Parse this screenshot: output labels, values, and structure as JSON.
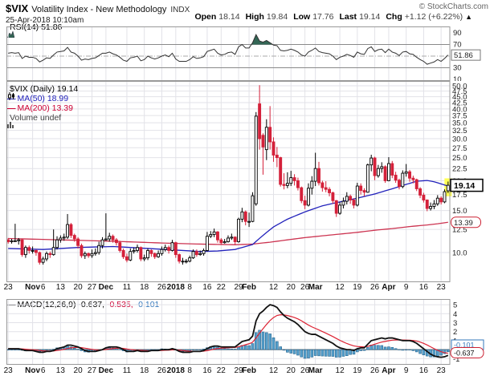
{
  "header": {
    "symbol": "$VIX",
    "title": "Volatility Index - New Methodology",
    "exchange": "INDX",
    "credit": "© StockCharts.com",
    "timestamp": "25-Apr-2018 10:10am",
    "quote": {
      "open_label": "Open",
      "open": "18.14",
      "high_label": "High",
      "high": "19.84",
      "low_label": "Low",
      "low": "17.76",
      "last_label": "Last",
      "last": "19.14",
      "chg_label": "Chg",
      "chg": "+1.12 (+6.22%)",
      "arrow": "▲"
    }
  },
  "rsi": {
    "label": "RSI(14) 51.86",
    "value_box": "51.86"
  },
  "main": {
    "legend": {
      "series": "$VIX (Daily) 19.14",
      "ma50": "MA(50) 18.99",
      "ma200": "MA(200) 13.39",
      "volume": "Volume undef"
    },
    "last_price_box": "19.14",
    "ma200_box": "13.39"
  },
  "macd": {
    "name": "MACD(12,26,9)",
    "v1": "-0.637,",
    "v2": "-0.535,",
    "v3": "-0.101",
    "hist_box": "-0.101",
    "macd_box": "-0.637"
  },
  "colors": {
    "up": "#000000",
    "up_fill": "#ffffff",
    "down": "#d4213a",
    "ma50": "#2222bb",
    "ma200": "#cc3350",
    "hist": "#56a0cc",
    "hist_border": "#27658f",
    "macd_line": "#111111",
    "signal": "#dd2233",
    "grid": "#e2e2e8",
    "panel_border": "#999999",
    "rsi_line": "#333333",
    "rsi_fill": "#336655",
    "rsi_levels": "#8a8a8a",
    "highlight": "#ffff55",
    "box_red": "#cc2233",
    "box_blue": "#3377bb",
    "zero_line": "#555555"
  },
  "chart_data": {
    "type": "candlestick",
    "log_scale": true,
    "main_axis": [
      50.0,
      47.5,
      45.0,
      42.5,
      40.0,
      37.5,
      35.0,
      32.5,
      30.0,
      27.5,
      25.0,
      22.5,
      20.0,
      17.5,
      15.0,
      12.5,
      10.0
    ],
    "rsi_axis": [
      90,
      70,
      30,
      10
    ],
    "rsi_levels": {
      "overbought": 70,
      "oversold": 30,
      "mid": 50
    },
    "macd_axis": [
      5,
      4,
      3,
      2,
      1,
      -1
    ],
    "x_ticks": [
      {
        "t": "23",
        "i": 0,
        "b": false
      },
      {
        "t": "Nov",
        "i": 7,
        "b": true
      },
      {
        "t": "6",
        "i": 10,
        "b": false
      },
      {
        "t": "13",
        "i": 15,
        "b": false
      },
      {
        "t": "20",
        "i": 20,
        "b": false
      },
      {
        "t": "27",
        "i": 24,
        "b": false
      },
      {
        "t": "Dec",
        "i": 28,
        "b": true
      },
      {
        "t": "11",
        "i": 34,
        "b": false
      },
      {
        "t": "18",
        "i": 39,
        "b": false
      },
      {
        "t": "26",
        "i": 44,
        "b": false
      },
      {
        "t": "2018",
        "i": 48,
        "b": true
      },
      {
        "t": "8",
        "i": 52,
        "b": false
      },
      {
        "t": "16",
        "i": 57,
        "b": false
      },
      {
        "t": "22",
        "i": 61,
        "b": false
      },
      {
        "t": "29",
        "i": 66,
        "b": false
      },
      {
        "t": "Feb",
        "i": 69,
        "b": true
      },
      {
        "t": "12",
        "i": 76,
        "b": false
      },
      {
        "t": "20",
        "i": 81,
        "b": false
      },
      {
        "t": "26",
        "i": 85,
        "b": false
      },
      {
        "t": "Mar",
        "i": 88,
        "b": true
      },
      {
        "t": "12",
        "i": 95,
        "b": false
      },
      {
        "t": "19",
        "i": 100,
        "b": false
      },
      {
        "t": "26",
        "i": 105,
        "b": false
      },
      {
        "t": "Apr",
        "i": 109,
        "b": true
      },
      {
        "t": "9",
        "i": 114,
        "b": false
      },
      {
        "t": "16",
        "i": 119,
        "b": false
      },
      {
        "t": "23",
        "i": 124,
        "b": false
      }
    ],
    "candles": [
      [
        11.3,
        11.5,
        10.9,
        11.1
      ],
      [
        11.1,
        11.4,
        10.9,
        11.2
      ],
      [
        11.2,
        13.2,
        11.1,
        11.2
      ],
      [
        11.2,
        11.5,
        10.8,
        11.3
      ],
      [
        11.3,
        11.4,
        9.6,
        9.8
      ],
      [
        9.8,
        10.7,
        9.5,
        10.5
      ],
      [
        10.5,
        10.7,
        9.9,
        10.2
      ],
      [
        10.2,
        10.6,
        9.9,
        10.2
      ],
      [
        10.2,
        10.3,
        9.7,
        10.0
      ],
      [
        10.0,
        10.1,
        8.9,
        9.1
      ],
      [
        9.1,
        9.6,
        8.9,
        9.4
      ],
      [
        9.4,
        10.1,
        9.2,
        9.9
      ],
      [
        9.9,
        10.1,
        9.5,
        9.8
      ],
      [
        9.8,
        12.5,
        9.7,
        10.5
      ],
      [
        10.5,
        11.7,
        10.3,
        11.3
      ],
      [
        11.3,
        11.8,
        11.0,
        11.5
      ],
      [
        11.5,
        12.0,
        11.2,
        11.6
      ],
      [
        11.6,
        14.5,
        11.4,
        13.1
      ],
      [
        13.1,
        13.3,
        11.5,
        11.8
      ],
      [
        11.8,
        12.0,
        11.1,
        11.4
      ],
      [
        11.4,
        11.6,
        10.4,
        10.7
      ],
      [
        10.7,
        10.9,
        9.5,
        9.7
      ],
      [
        9.7,
        10.1,
        9.4,
        9.9
      ],
      [
        9.9,
        10.0,
        9.5,
        9.7
      ],
      [
        9.7,
        10.3,
        9.5,
        9.9
      ],
      [
        9.9,
        10.4,
        9.7,
        10.0
      ],
      [
        10.0,
        11.1,
        9.8,
        10.7
      ],
      [
        10.7,
        11.6,
        10.4,
        11.3
      ],
      [
        11.3,
        14.6,
        11.2,
        11.4
      ],
      [
        11.4,
        12.1,
        11.1,
        11.7
      ],
      [
        11.7,
        11.9,
        11.0,
        11.3
      ],
      [
        11.3,
        11.5,
        10.7,
        11.0
      ],
      [
        11.0,
        11.2,
        10.0,
        10.2
      ],
      [
        10.2,
        10.4,
        9.4,
        9.6
      ],
      [
        9.6,
        9.9,
        9.1,
        9.3
      ],
      [
        9.3,
        10.4,
        9.2,
        10.1
      ],
      [
        10.1,
        10.5,
        9.9,
        10.2
      ],
      [
        10.2,
        10.8,
        10.0,
        10.5
      ],
      [
        10.5,
        10.6,
        9.2,
        9.4
      ],
      [
        9.4,
        9.8,
        9.2,
        9.5
      ],
      [
        9.5,
        10.4,
        9.3,
        10.2
      ],
      [
        10.2,
        10.3,
        9.6,
        9.9
      ],
      [
        9.9,
        10.0,
        9.4,
        9.6
      ],
      [
        9.6,
        10.2,
        9.5,
        9.9
      ],
      [
        9.9,
        10.6,
        9.7,
        10.3
      ],
      [
        10.3,
        10.8,
        10.1,
        10.5
      ],
      [
        10.5,
        10.7,
        9.9,
        10.2
      ],
      [
        10.2,
        11.3,
        10.1,
        11.0
      ],
      [
        11.0,
        11.1,
        9.5,
        9.8
      ],
      [
        9.8,
        9.9,
        9.0,
        9.2
      ],
      [
        9.2,
        9.5,
        8.9,
        9.2
      ],
      [
        9.2,
        9.4,
        9.0,
        9.2
      ],
      [
        9.2,
        9.7,
        9.1,
        9.5
      ],
      [
        9.5,
        10.3,
        9.4,
        10.1
      ],
      [
        10.1,
        10.3,
        9.6,
        9.8
      ],
      [
        9.8,
        10.2,
        9.7,
        9.9
      ],
      [
        9.9,
        10.4,
        9.7,
        10.2
      ],
      [
        10.2,
        12.2,
        10.1,
        11.7
      ],
      [
        11.7,
        12.3,
        11.5,
        11.9
      ],
      [
        11.9,
        12.6,
        11.6,
        12.2
      ],
      [
        12.2,
        12.3,
        11.0,
        11.3
      ],
      [
        11.3,
        11.5,
        10.8,
        11.0
      ],
      [
        11.0,
        11.4,
        10.9,
        11.1
      ],
      [
        11.1,
        11.8,
        11.0,
        11.5
      ],
      [
        11.5,
        12.0,
        11.3,
        11.6
      ],
      [
        11.6,
        11.7,
        10.8,
        11.1
      ],
      [
        11.1,
        14.0,
        11.0,
        13.8
      ],
      [
        13.8,
        15.4,
        13.4,
        14.8
      ],
      [
        14.8,
        15.0,
        13.0,
        13.5
      ],
      [
        13.5,
        14.7,
        12.8,
        13.5
      ],
      [
        13.5,
        17.9,
        13.4,
        17.3
      ],
      [
        16.0,
        38.8,
        15.7,
        37.3
      ],
      [
        42.0,
        50.3,
        27.0,
        30.0
      ],
      [
        31.0,
        31.6,
        21.2,
        27.7
      ],
      [
        27.0,
        36.2,
        24.4,
        33.5
      ],
      [
        33.5,
        41.1,
        27.0,
        29.1
      ],
      [
        29.1,
        30.4,
        24.0,
        25.6
      ],
      [
        25.6,
        27.7,
        22.8,
        25.0
      ],
      [
        25.0,
        25.2,
        18.9,
        19.3
      ],
      [
        19.3,
        21.5,
        18.4,
        19.1
      ],
      [
        19.1,
        21.7,
        18.6,
        19.5
      ],
      [
        19.5,
        22.0,
        19.0,
        20.6
      ],
      [
        20.6,
        21.3,
        19.1,
        20.0
      ],
      [
        20.0,
        20.6,
        18.2,
        18.7
      ],
      [
        18.7,
        18.9,
        16.1,
        16.5
      ],
      [
        16.5,
        17.3,
        15.2,
        15.8
      ],
      [
        15.8,
        19.5,
        15.6,
        18.6
      ],
      [
        18.6,
        20.9,
        17.5,
        19.9
      ],
      [
        19.9,
        26.2,
        19.0,
        22.5
      ],
      [
        22.5,
        24.0,
        19.1,
        19.6
      ],
      [
        19.6,
        20.0,
        18.0,
        18.7
      ],
      [
        18.7,
        19.9,
        17.9,
        18.4
      ],
      [
        18.4,
        18.8,
        17.2,
        17.8
      ],
      [
        17.8,
        18.0,
        16.0,
        16.5
      ],
      [
        16.5,
        16.6,
        14.1,
        14.6
      ],
      [
        14.6,
        16.3,
        14.4,
        15.8
      ],
      [
        15.8,
        17.0,
        15.3,
        16.4
      ],
      [
        16.4,
        17.9,
        15.9,
        17.2
      ],
      [
        17.2,
        17.5,
        16.0,
        16.6
      ],
      [
        16.6,
        16.9,
        15.3,
        15.8
      ],
      [
        15.8,
        19.6,
        15.6,
        19.0
      ],
      [
        19.0,
        19.5,
        17.5,
        18.2
      ],
      [
        18.2,
        18.6,
        17.2,
        17.9
      ],
      [
        17.9,
        23.6,
        17.8,
        23.3
      ],
      [
        23.3,
        25.7,
        21.9,
        24.9
      ],
      [
        24.9,
        25.2,
        20.1,
        21.0
      ],
      [
        21.0,
        23.3,
        20.6,
        22.5
      ],
      [
        22.5,
        23.9,
        21.6,
        22.9
      ],
      [
        22.9,
        23.2,
        19.6,
        20.0
      ],
      [
        20.0,
        25.1,
        19.9,
        23.6
      ],
      [
        23.6,
        24.2,
        20.5,
        21.1
      ],
      [
        21.1,
        21.8,
        19.6,
        20.1
      ],
      [
        20.1,
        20.4,
        18.4,
        18.9
      ],
      [
        18.9,
        22.1,
        18.6,
        21.5
      ],
      [
        21.5,
        23.5,
        20.8,
        21.8
      ],
      [
        21.8,
        22.2,
        19.8,
        20.5
      ],
      [
        20.5,
        21.0,
        19.5,
        20.2
      ],
      [
        20.2,
        20.4,
        18.1,
        18.5
      ],
      [
        18.5,
        18.8,
        16.9,
        17.4
      ],
      [
        17.4,
        17.8,
        16.2,
        16.6
      ],
      [
        16.6,
        16.7,
        14.9,
        15.3
      ],
      [
        15.3,
        16.2,
        15.0,
        15.6
      ],
      [
        15.6,
        16.6,
        15.2,
        16.0
      ],
      [
        16.0,
        17.4,
        15.7,
        16.9
      ],
      [
        16.9,
        17.2,
        15.9,
        16.3
      ],
      [
        16.3,
        18.4,
        16.1,
        18.0
      ],
      [
        18.14,
        19.84,
        17.76,
        19.14
      ]
    ],
    "rsi": [
      55,
      56,
      55,
      56,
      46,
      50,
      48,
      48,
      46,
      40,
      43,
      47,
      46,
      52,
      57,
      58,
      59,
      65,
      57,
      55,
      50,
      43,
      45,
      44,
      46,
      47,
      51,
      55,
      55,
      57,
      54,
      52,
      48,
      43,
      41,
      47,
      48,
      50,
      42,
      44,
      50,
      47,
      45,
      47,
      50,
      52,
      49,
      55,
      45,
      41,
      41,
      41,
      44,
      49,
      46,
      47,
      49,
      58,
      60,
      62,
      55,
      52,
      53,
      56,
      57,
      53,
      66,
      70,
      64,
      64,
      73,
      87,
      76,
      74,
      77,
      73,
      69,
      68,
      60,
      59,
      60,
      62,
      60,
      57,
      52,
      50,
      57,
      60,
      64,
      58,
      56,
      55,
      54,
      50,
      44,
      48,
      50,
      53,
      51,
      48,
      57,
      54,
      53,
      63,
      66,
      58,
      61,
      62,
      56,
      62,
      57,
      55,
      51,
      57,
      58,
      54,
      53,
      48,
      44,
      41,
      36,
      38,
      40,
      44,
      41,
      46,
      51.86
    ],
    "macd": [
      0.1,
      0.1,
      0.1,
      0.1,
      0.0,
      -0.1,
      -0.1,
      -0.1,
      -0.2,
      -0.3,
      -0.3,
      -0.2,
      -0.2,
      -0.1,
      0.1,
      0.2,
      0.3,
      0.5,
      0.5,
      0.4,
      0.3,
      0.1,
      -0.1,
      -0.2,
      -0.2,
      -0.2,
      -0.1,
      0.0,
      0.2,
      0.3,
      0.3,
      0.3,
      0.2,
      0.0,
      -0.2,
      -0.2,
      -0.2,
      -0.1,
      -0.2,
      -0.2,
      -0.2,
      -0.1,
      -0.1,
      -0.1,
      0.0,
      0.0,
      0.0,
      0.1,
      0.0,
      -0.2,
      -0.3,
      -0.3,
      -0.3,
      -0.2,
      -0.2,
      -0.2,
      -0.1,
      0.1,
      0.3,
      0.4,
      0.4,
      0.3,
      0.3,
      0.3,
      0.3,
      0.3,
      0.6,
      0.9,
      1.0,
      1.1,
      1.5,
      3.2,
      4.0,
      4.3,
      4.7,
      5.0,
      4.9,
      4.7,
      4.2,
      3.8,
      3.5,
      3.3,
      3.1,
      2.8,
      2.4,
      2.0,
      1.8,
      1.7,
      1.7,
      1.5,
      1.3,
      1.1,
      0.9,
      0.7,
      0.4,
      0.2,
      0.1,
      0.0,
      0.0,
      -0.1,
      0.1,
      0.2,
      0.2,
      0.6,
      1.0,
      1.1,
      1.2,
      1.3,
      1.2,
      1.3,
      1.3,
      1.2,
      1.1,
      1.0,
      1.0,
      1.0,
      0.9,
      0.7,
      0.4,
      0.1,
      -0.2,
      -0.5,
      -0.7,
      -0.8,
      -0.85,
      -0.8,
      -0.637
    ],
    "ma50_anchors": [
      [
        0,
        10.4
      ],
      [
        10,
        10.3
      ],
      [
        20,
        10.5
      ],
      [
        30,
        10.6
      ],
      [
        40,
        10.4
      ],
      [
        50,
        10.2
      ],
      [
        55,
        10.1
      ],
      [
        60,
        10.15
      ],
      [
        65,
        10.3
      ],
      [
        70,
        10.8
      ],
      [
        73,
        11.8
      ],
      [
        76,
        12.8
      ],
      [
        80,
        13.8
      ],
      [
        85,
        14.8
      ],
      [
        90,
        15.7
      ],
      [
        95,
        16.3
      ],
      [
        100,
        16.9
      ],
      [
        105,
        17.6
      ],
      [
        110,
        18.5
      ],
      [
        114,
        19.3
      ],
      [
        117,
        19.9
      ],
      [
        120,
        20.05
      ],
      [
        122,
        19.8
      ],
      [
        124,
        19.4
      ],
      [
        126,
        18.99
      ]
    ],
    "ma200_anchors": [
      [
        0,
        11.45
      ],
      [
        15,
        11.3
      ],
      [
        30,
        11.15
      ],
      [
        45,
        10.95
      ],
      [
        55,
        10.85
      ],
      [
        65,
        10.78
      ],
      [
        70,
        10.85
      ],
      [
        75,
        11.05
      ],
      [
        80,
        11.3
      ],
      [
        85,
        11.55
      ],
      [
        90,
        11.75
      ],
      [
        95,
        11.95
      ],
      [
        100,
        12.15
      ],
      [
        105,
        12.4
      ],
      [
        110,
        12.6
      ],
      [
        115,
        12.85
      ],
      [
        120,
        13.05
      ],
      [
        123,
        13.2
      ],
      [
        126,
        13.39
      ]
    ]
  }
}
